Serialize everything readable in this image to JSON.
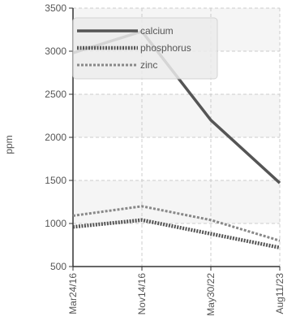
{
  "chart_data": {
    "type": "line",
    "categories": [
      "Mar24/16",
      "Nov14/16",
      "May30/22",
      "Aug11/23"
    ],
    "ylabel": "ppm",
    "ylim": [
      500,
      3500
    ],
    "yticks": [
      "500",
      "1000",
      "1500",
      "2000",
      "2500",
      "3000",
      "3500"
    ],
    "grid": true,
    "legend": "top-left",
    "series": [
      {
        "name": "calcium",
        "values": [
          2980,
          3230,
          2200,
          1470
        ],
        "color": "#555555",
        "style": "solid"
      },
      {
        "name": "phosphorus",
        "values": [
          960,
          1040,
          880,
          720
        ],
        "color": "#555555",
        "style": "dotted"
      },
      {
        "name": "zinc",
        "values": [
          1090,
          1200,
          1040,
          800
        ],
        "color": "#888888",
        "style": "dashed"
      }
    ]
  }
}
